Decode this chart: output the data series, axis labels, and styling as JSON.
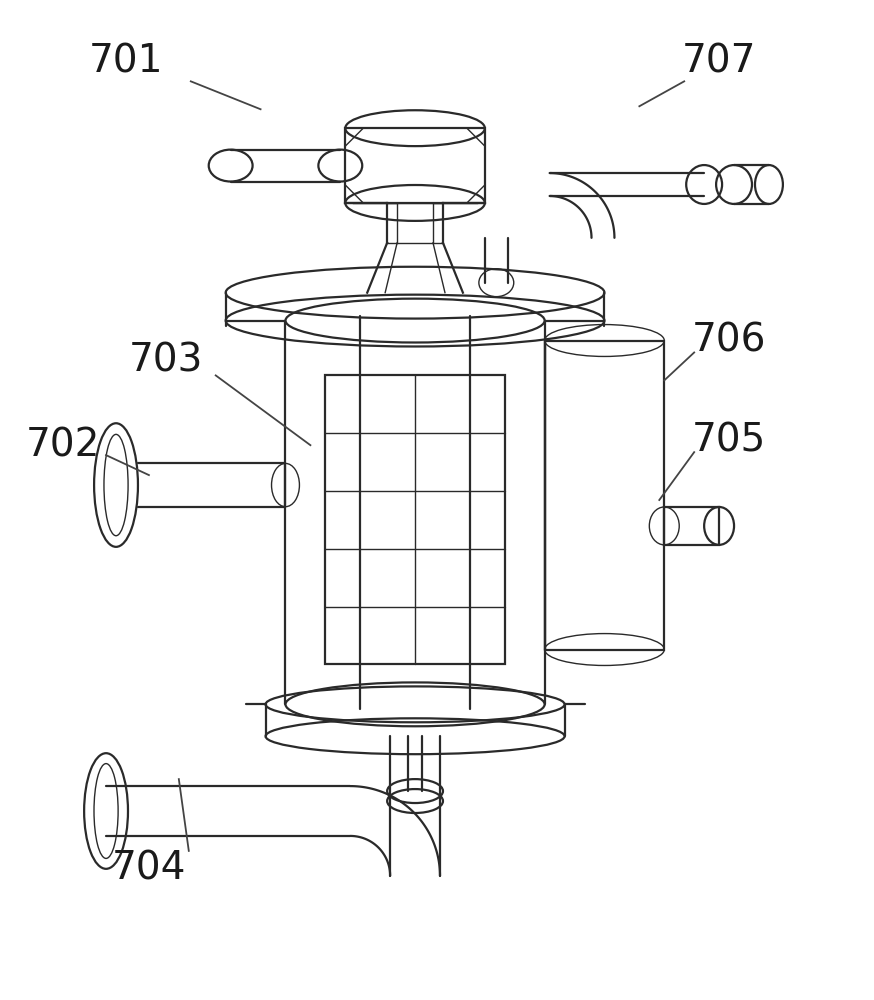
{
  "bg_color": "#ffffff",
  "line_color": "#2a2a2a",
  "label_color": "#1a1a1a",
  "label_fontsize": 28,
  "ann_color": "#444444",
  "ann_lw": 1.3,
  "lw_main": 1.6,
  "lw_thin": 1.0,
  "figsize": [
    8.74,
    10.0
  ],
  "dpi": 100
}
